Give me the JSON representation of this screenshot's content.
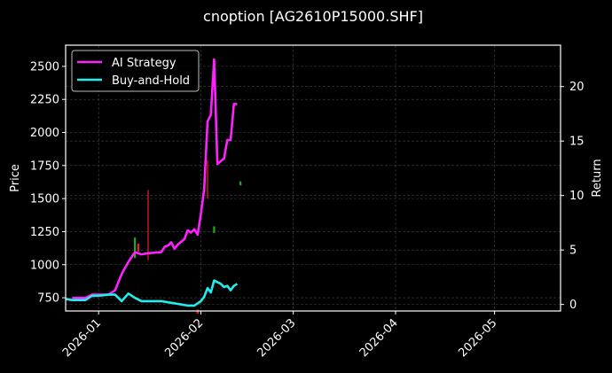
{
  "chart_data": {
    "type": "line",
    "title": "cnoption [AG2610P15000.SHF]",
    "xlabel": "",
    "ylabel": "Price",
    "y2label": "Return",
    "ylim": [
      650,
      2660
    ],
    "y2lim": [
      -0.6,
      23.8
    ],
    "xlim": [
      "2025-12-22",
      "2026-05-21"
    ],
    "grid": true,
    "legend_position": "upper left",
    "x_tick_labels": [
      "2026-01",
      "2026-02",
      "2026-03",
      "2026-04",
      "2026-05"
    ],
    "y_tick_labels": [
      "750",
      "1000",
      "1250",
      "1500",
      "1750",
      "2000",
      "2250",
      "2500"
    ],
    "y2_tick_labels": [
      "0",
      "5",
      "10",
      "15",
      "20"
    ],
    "legend": [
      "AI Strategy",
      "Buy-and-Hold"
    ],
    "colors": {
      "ai_strategy": "#ff22ff",
      "buy_and_hold": "#22eeee",
      "candle_up": "#22aa22",
      "candle_down": "#ee2222",
      "background": "#000000",
      "grid": "#444444",
      "axes": "#ffffff"
    },
    "series": [
      {
        "name": "AI Strategy",
        "axis": "right",
        "x": [
          "2025-12-24",
          "2025-12-28",
          "2025-12-30",
          "2026-01-01",
          "2026-01-04",
          "2026-01-06",
          "2026-01-08",
          "2026-01-10",
          "2026-01-12",
          "2026-01-14",
          "2026-01-16",
          "2026-01-20",
          "2026-01-21",
          "2026-01-22",
          "2026-01-23",
          "2026-01-24",
          "2026-01-25",
          "2026-01-27",
          "2026-01-28",
          "2026-01-29",
          "2026-01-30",
          "2026-01-31",
          "2026-02-01",
          "2026-02-02",
          "2026-02-03",
          "2026-02-04",
          "2026-02-05",
          "2026-02-06",
          "2026-02-08",
          "2026-02-09",
          "2026-02-10",
          "2026-02-11",
          "2026-02-12"
        ],
        "values": [
          0.6,
          0.6,
          0.9,
          0.9,
          0.9,
          1.3,
          2.8,
          3.9,
          4.8,
          4.6,
          4.7,
          4.8,
          5.3,
          5.4,
          5.7,
          5.1,
          5.5,
          6.0,
          6.8,
          6.6,
          6.9,
          6.4,
          8.3,
          10.6,
          16.8,
          17.4,
          22.5,
          12.9,
          13.4,
          15.1,
          15.1,
          18.4,
          18.4
        ]
      },
      {
        "name": "Buy-and-Hold",
        "axis": "right",
        "x": [
          "2025-12-22",
          "2025-12-24",
          "2025-12-28",
          "2025-12-30",
          "2026-01-01",
          "2026-01-04",
          "2026-01-06",
          "2026-01-08",
          "2026-01-10",
          "2026-01-12",
          "2026-01-14",
          "2026-01-16",
          "2026-01-20",
          "2026-01-22",
          "2026-01-24",
          "2026-01-26",
          "2026-01-28",
          "2026-01-30",
          "2026-02-01",
          "2026-02-02",
          "2026-02-03",
          "2026-02-04",
          "2026-02-05",
          "2026-02-07",
          "2026-02-08",
          "2026-02-09",
          "2026-02-10",
          "2026-02-11",
          "2026-02-12"
        ],
        "values": [
          0.5,
          0.4,
          0.4,
          0.8,
          0.8,
          0.9,
          0.9,
          0.3,
          1.0,
          0.6,
          0.3,
          0.3,
          0.3,
          0.2,
          0.1,
          0.0,
          -0.1,
          -0.1,
          0.3,
          0.7,
          1.5,
          1.1,
          2.2,
          1.9,
          1.6,
          1.7,
          1.3,
          1.7,
          1.9
        ]
      }
    ],
    "candlesticks_price_axis": [
      {
        "date": "2026-01-12",
        "color": "up",
        "low": 1050,
        "high": 1205
      },
      {
        "date": "2026-01-13",
        "color": "down",
        "low": 1100,
        "high": 1160
      },
      {
        "date": "2026-01-16",
        "color": "down",
        "low": 1035,
        "high": 1565
      },
      {
        "date": "2026-01-31",
        "color": "down",
        "low": 630,
        "high": 660
      },
      {
        "date": "2026-02-03",
        "color": "down",
        "low": 1500,
        "high": 1790
      },
      {
        "date": "2026-02-05",
        "color": "up",
        "low": 1240,
        "high": 1290
      },
      {
        "date": "2026-02-13",
        "color": "up",
        "low": 1600,
        "high": 1630
      }
    ]
  }
}
